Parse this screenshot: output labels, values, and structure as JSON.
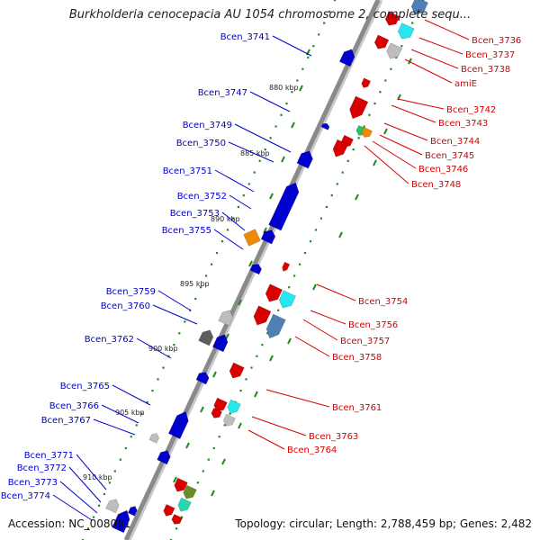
{
  "title": "Burkholderia cenocepacia AU 1054 chromosome 2, complete sequ...",
  "accession": "Accession: NC_008061",
  "topology": "Topology: circular; Length: 2,788,459 bp; Genes: 2,482",
  "colors": {
    "forward": "#d90000",
    "reverse": "#0000cc",
    "backbone": "#8a8a8a",
    "tick": "#1f8a1f",
    "cyan": "#26e7ee",
    "gray": "#bdbdbd",
    "orange": "#f08a00",
    "steel": "#4f7fb4",
    "olive": "#6b8c23",
    "green": "#22c55e",
    "teal": "#25d8b0",
    "dark": "#5e5e5e"
  },
  "scale": [
    "880 kbp",
    "885 kbp",
    "890 kbp",
    "895 kbp",
    "900 kbp",
    "905 kbp",
    "910 kbp"
  ],
  "reverse_labels": [
    "Bcen_3741",
    "Bcen_3747",
    "Bcen_3749",
    "Bcen_3750",
    "Bcen_3751",
    "Bcen_3752",
    "Bcen_3753",
    "Bcen_3755",
    "Bcen_3759",
    "Bcen_3760",
    "Bcen_3762",
    "Bcen_3765",
    "Bcen_3766",
    "Bcen_3767",
    "Bcen_3771",
    "Bcen_3772",
    "Bcen_3773",
    "Bcen_3774"
  ],
  "forward_labels": [
    "Bcen_3736",
    "Bcen_3737",
    "Bcen_3738",
    "amiE",
    "Bcen_3742",
    "Bcen_3743",
    "Bcen_3744",
    "Bcen_3745",
    "Bcen_3746",
    "Bcen_3748",
    "Bcen_3754",
    "Bcen_3756",
    "Bcen_3757",
    "Bcen_3758",
    "Bcen_3761",
    "Bcen_3763",
    "Bcen_3764"
  ]
}
